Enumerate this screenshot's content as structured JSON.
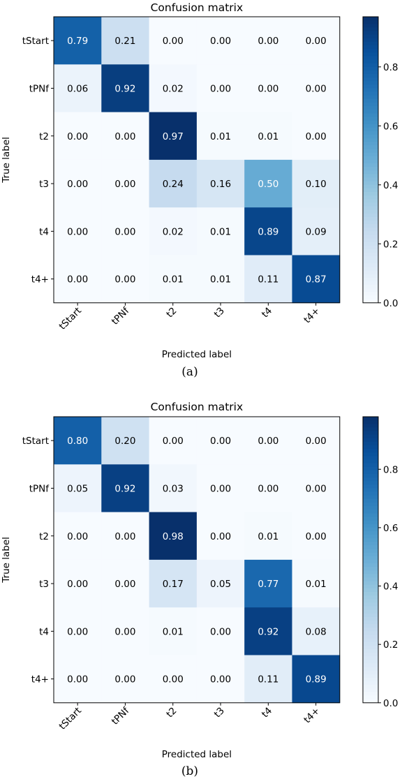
{
  "colorbar_ticks": [
    "0.0",
    "0.2",
    "0.4",
    "0.6",
    "0.8"
  ],
  "colormap": {
    "low": "#f7fbff",
    "high": "#08306b",
    "name": "Blues"
  },
  "chart_data": [
    {
      "type": "heatmap",
      "title": "Confusion matrix",
      "xlabel": "Predicted label",
      "ylabel": "True label",
      "caption": "(a)",
      "x_categories": [
        "tStart",
        "tPNf",
        "t2",
        "t3",
        "t4",
        "t4+"
      ],
      "y_categories": [
        "tStart",
        "tPNf",
        "t2",
        "t3",
        "t4",
        "t4+"
      ],
      "values": [
        [
          0.79,
          0.21,
          0.0,
          0.0,
          0.0,
          0.0
        ],
        [
          0.06,
          0.92,
          0.02,
          0.0,
          0.0,
          0.0
        ],
        [
          0.0,
          0.0,
          0.97,
          0.01,
          0.01,
          0.0
        ],
        [
          0.0,
          0.0,
          0.24,
          0.16,
          0.5,
          0.1
        ],
        [
          0.0,
          0.0,
          0.02,
          0.01,
          0.89,
          0.09
        ],
        [
          0.0,
          0.0,
          0.01,
          0.01,
          0.11,
          0.87
        ]
      ],
      "vmin": 0.0,
      "vmax": 0.97
    },
    {
      "type": "heatmap",
      "title": "Confusion matrix",
      "xlabel": "Predicted label",
      "ylabel": "True label",
      "caption": "(b)",
      "x_categories": [
        "tStart",
        "tPNf",
        "t2",
        "t3",
        "t4",
        "t4+"
      ],
      "y_categories": [
        "tStart",
        "tPNf",
        "t2",
        "t3",
        "t4",
        "t4+"
      ],
      "values": [
        [
          0.8,
          0.2,
          0.0,
          0.0,
          0.0,
          0.0
        ],
        [
          0.05,
          0.92,
          0.03,
          0.0,
          0.0,
          0.0
        ],
        [
          0.0,
          0.0,
          0.98,
          0.0,
          0.01,
          0.0
        ],
        [
          0.0,
          0.0,
          0.17,
          0.05,
          0.77,
          0.01
        ],
        [
          0.0,
          0.0,
          0.01,
          0.0,
          0.92,
          0.08
        ],
        [
          0.0,
          0.0,
          0.0,
          0.0,
          0.11,
          0.89
        ]
      ],
      "vmin": 0.0,
      "vmax": 0.98
    }
  ]
}
